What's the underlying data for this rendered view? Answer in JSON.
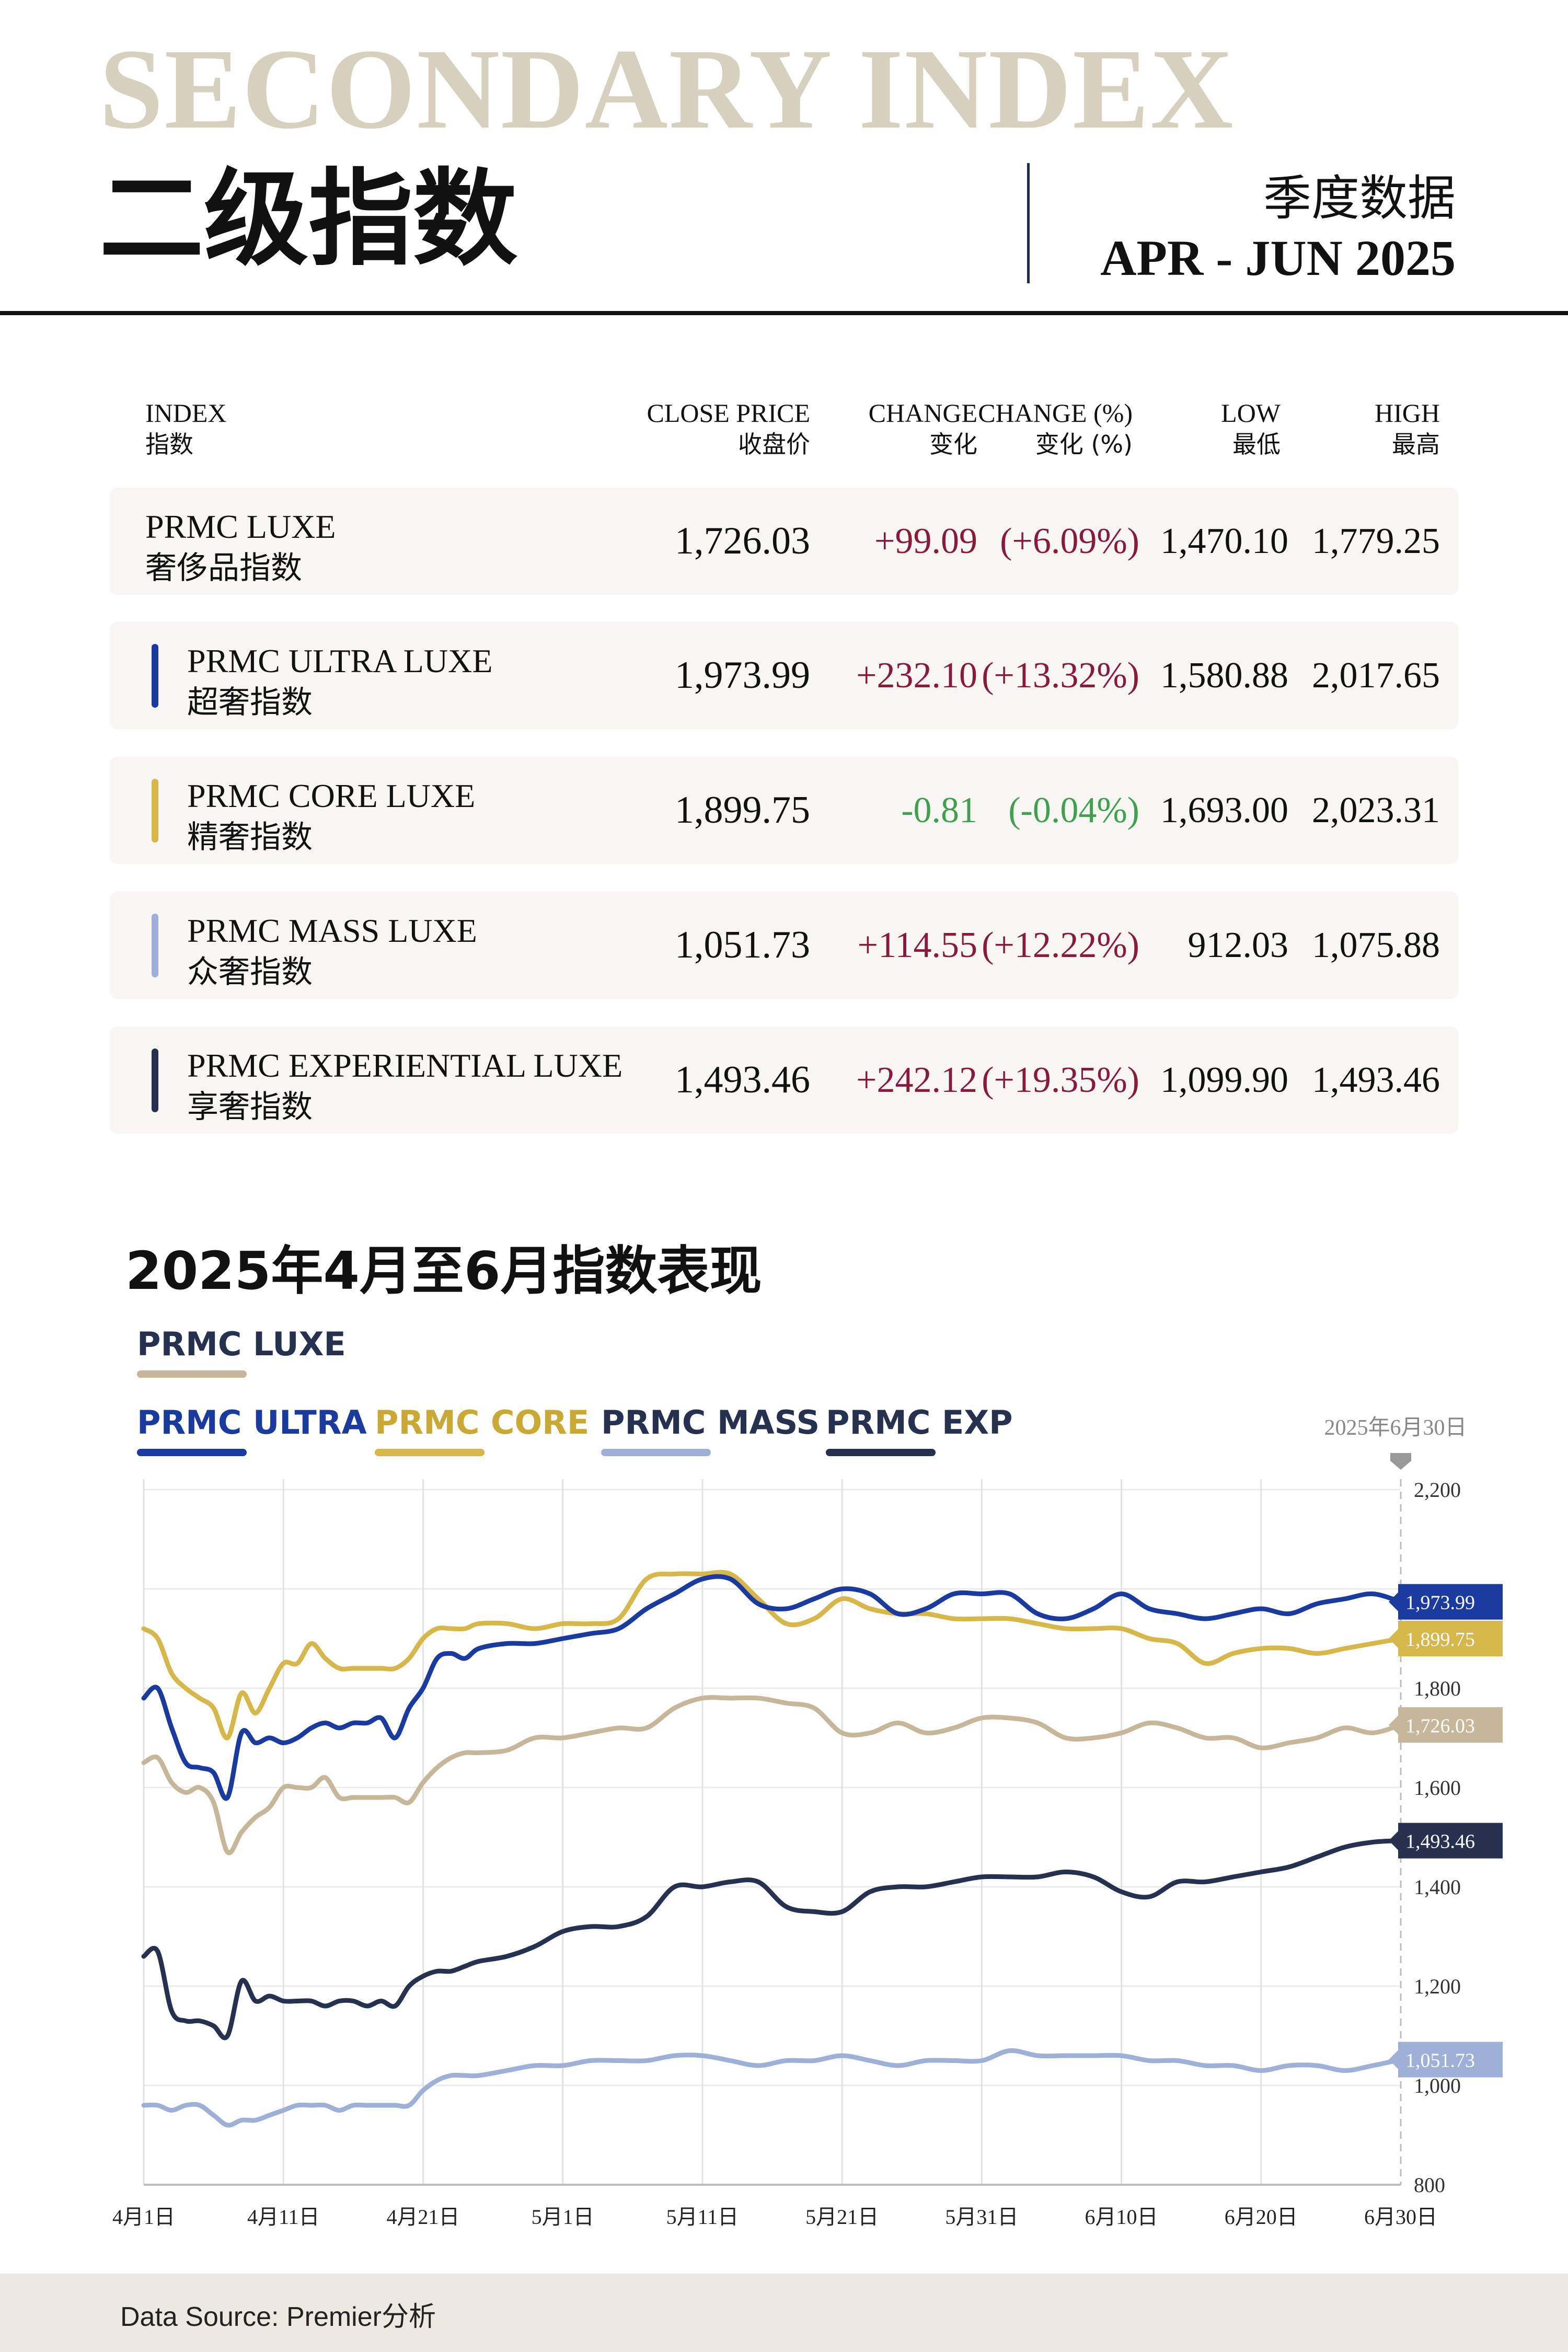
{
  "header": {
    "watermark": "SECONDARY INDEX",
    "title_cn": "二级指数",
    "period_cn": "季度数据",
    "period_en": "APR - JUN 2025"
  },
  "table": {
    "headers": {
      "index_en": "INDEX",
      "index_cn": "指数",
      "close_en": "CLOSE PRICE",
      "close_cn": "收盘价",
      "change_en": "CHANGE",
      "change_cn": "变化",
      "changepct_en": "CHANGE (%)",
      "changepct_cn": "变化 (%)",
      "low_en": "LOW",
      "low_cn": "最低",
      "high_en": "HIGH",
      "high_cn": "最高"
    },
    "rows": [
      {
        "name_en": "PRMC LUXE",
        "name_cn": "奢侈品指数",
        "close": "1,726.03",
        "change": "+99.09",
        "change_pct": "(+6.09%)",
        "low": "1,470.10",
        "high": "1,779.25",
        "color": "#c6b79b",
        "direction": "up"
      },
      {
        "name_en": "PRMC ULTRA LUXE",
        "name_cn": "超奢指数",
        "close": "1,973.99",
        "change": "+232.10",
        "change_pct": "(+13.32%)",
        "low": "1,580.88",
        "high": "2,017.65",
        "color": "#1a3aa0",
        "direction": "up"
      },
      {
        "name_en": "PRMC CORE LUXE",
        "name_cn": "精奢指数",
        "close": "1,899.75",
        "change": "-0.81",
        "change_pct": "(-0.04%)",
        "low": "1,693.00",
        "high": "2,023.31",
        "color": "#d6b74a",
        "direction": "down"
      },
      {
        "name_en": "PRMC MASS LUXE",
        "name_cn": "众奢指数",
        "close": "1,051.73",
        "change": "+114.55",
        "change_pct": "(+12.22%)",
        "low": "912.03",
        "high": "1,075.88",
        "color": "#9fb0d6",
        "direction": "up"
      },
      {
        "name_en": "PRMC EXPERIENTIAL LUXE",
        "name_cn": "享奢指数",
        "close": "1,493.46",
        "change": "+242.12",
        "change_pct": "(+19.35%)",
        "low": "1,099.90",
        "high": "1,493.46",
        "color": "#25314f",
        "direction": "up"
      }
    ],
    "colors": {
      "up": "#8a1a3c",
      "down": "#3fa04f"
    }
  },
  "chart_section": {
    "title": "2025年4月至6月指数表现",
    "legend": [
      {
        "label": "PRMC LUXE",
        "color": "#c6b79b"
      },
      {
        "label": "PRMC ULTRA",
        "color": "#1a3aa0"
      },
      {
        "label": "PRMC CORE",
        "color": "#d6b74a"
      },
      {
        "label": "PRMC MASS",
        "color": "#9fb0d6"
      },
      {
        "label": "PRMC EXP",
        "color": "#25314f"
      }
    ],
    "marker_label": "2025年6月30日"
  },
  "chart_data": {
    "type": "line",
    "title": "2025年4月至6月指数表现",
    "xlabel": "",
    "ylabel": "",
    "x_ticks": [
      "4月1日",
      "4月11日",
      "4月21日",
      "5月1日",
      "5月11日",
      "5月21日",
      "5月31日",
      "6月10日",
      "6月20日",
      "6月30日"
    ],
    "x_range": [
      0,
      90
    ],
    "y_ticks": [
      800,
      1000,
      1200,
      1400,
      1600,
      1800,
      2000,
      2200
    ],
    "y_tick_labels": [
      "800",
      "1,000",
      "1,200",
      "1,400",
      "1,600",
      "1,800",
      "",
      "2,200"
    ],
    "ylim": [
      800,
      2200
    ],
    "grid": true,
    "legend_position": "top-left",
    "end_labels": [
      "1,973.99",
      "1,899.75",
      "1,726.03",
      "1,493.46",
      "1,051.73"
    ],
    "series": [
      {
        "name": "PRMC LUXE",
        "color": "#c6b79b",
        "x": [
          0,
          1,
          2,
          3,
          4,
          5,
          6,
          7,
          8,
          9,
          10,
          11,
          12,
          13,
          14,
          15,
          16,
          17,
          18,
          19,
          20,
          21,
          22,
          23,
          24,
          26,
          28,
          30,
          32,
          34,
          36,
          38,
          40,
          42,
          44,
          46,
          48,
          50,
          52,
          54,
          56,
          58,
          60,
          62,
          64,
          66,
          68,
          70,
          72,
          74,
          76,
          78,
          80,
          82,
          84,
          86,
          88,
          90
        ],
        "y": [
          1650,
          1660,
          1610,
          1590,
          1600,
          1570,
          1470,
          1510,
          1540,
          1560,
          1600,
          1600,
          1600,
          1620,
          1580,
          1580,
          1580,
          1580,
          1580,
          1570,
          1610,
          1640,
          1660,
          1670,
          1670,
          1675,
          1700,
          1700,
          1710,
          1720,
          1720,
          1760,
          1780,
          1780,
          1780,
          1770,
          1760,
          1710,
          1710,
          1730,
          1710,
          1720,
          1740,
          1740,
          1730,
          1700,
          1700,
          1710,
          1730,
          1720,
          1700,
          1700,
          1680,
          1690,
          1700,
          1720,
          1710,
          1726
        ]
      },
      {
        "name": "PRMC ULTRA",
        "color": "#1a3aa0",
        "x": [
          0,
          1,
          2,
          3,
          4,
          5,
          6,
          7,
          8,
          9,
          10,
          11,
          12,
          13,
          14,
          15,
          16,
          17,
          18,
          19,
          20,
          21,
          22,
          23,
          24,
          26,
          28,
          30,
          32,
          34,
          36,
          38,
          40,
          42,
          44,
          46,
          48,
          50,
          52,
          54,
          56,
          58,
          60,
          62,
          64,
          66,
          68,
          70,
          72,
          74,
          76,
          78,
          80,
          82,
          84,
          86,
          88,
          90
        ],
        "y": [
          1780,
          1800,
          1720,
          1650,
          1640,
          1630,
          1580,
          1710,
          1690,
          1700,
          1690,
          1700,
          1720,
          1730,
          1720,
          1730,
          1730,
          1740,
          1700,
          1760,
          1800,
          1860,
          1870,
          1860,
          1880,
          1890,
          1890,
          1900,
          1910,
          1920,
          1960,
          1990,
          2020,
          2020,
          1970,
          1960,
          1980,
          2000,
          1990,
          1950,
          1960,
          1990,
          1990,
          1990,
          1950,
          1940,
          1960,
          1990,
          1960,
          1950,
          1940,
          1950,
          1960,
          1950,
          1970,
          1980,
          1990,
          1974
        ]
      },
      {
        "name": "PRMC CORE",
        "color": "#d6b74a",
        "x": [
          0,
          1,
          2,
          3,
          4,
          5,
          6,
          7,
          8,
          9,
          10,
          11,
          12,
          13,
          14,
          15,
          16,
          17,
          18,
          19,
          20,
          21,
          22,
          23,
          24,
          26,
          28,
          30,
          32,
          34,
          36,
          38,
          40,
          42,
          44,
          46,
          48,
          50,
          52,
          54,
          56,
          58,
          60,
          62,
          64,
          66,
          68,
          70,
          72,
          74,
          76,
          78,
          80,
          82,
          84,
          86,
          88,
          90
        ],
        "y": [
          1920,
          1900,
          1830,
          1800,
          1780,
          1760,
          1700,
          1790,
          1750,
          1800,
          1850,
          1850,
          1890,
          1860,
          1840,
          1840,
          1840,
          1840,
          1840,
          1860,
          1900,
          1920,
          1920,
          1920,
          1930,
          1930,
          1920,
          1930,
          1930,
          1940,
          2020,
          2030,
          2030,
          2030,
          1980,
          1930,
          1940,
          1980,
          1960,
          1950,
          1950,
          1940,
          1940,
          1940,
          1930,
          1920,
          1920,
          1920,
          1900,
          1890,
          1850,
          1870,
          1880,
          1880,
          1870,
          1880,
          1890,
          1900
        ]
      },
      {
        "name": "PRMC MASS",
        "color": "#9fb0d6",
        "x": [
          0,
          1,
          2,
          3,
          4,
          5,
          6,
          7,
          8,
          9,
          10,
          11,
          12,
          13,
          14,
          15,
          16,
          17,
          18,
          19,
          20,
          21,
          22,
          23,
          24,
          26,
          28,
          30,
          32,
          34,
          36,
          38,
          40,
          42,
          44,
          46,
          48,
          50,
          52,
          54,
          56,
          58,
          60,
          62,
          64,
          66,
          68,
          70,
          72,
          74,
          76,
          78,
          80,
          82,
          84,
          86,
          88,
          90
        ],
        "y": [
          960,
          960,
          950,
          960,
          960,
          940,
          920,
          930,
          930,
          940,
          950,
          960,
          960,
          960,
          950,
          960,
          960,
          960,
          960,
          960,
          990,
          1010,
          1020,
          1020,
          1020,
          1030,
          1040,
          1040,
          1050,
          1050,
          1050,
          1060,
          1060,
          1050,
          1040,
          1050,
          1050,
          1060,
          1050,
          1040,
          1050,
          1050,
          1050,
          1070,
          1060,
          1060,
          1060,
          1060,
          1050,
          1050,
          1040,
          1040,
          1030,
          1040,
          1040,
          1030,
          1040,
          1052
        ]
      },
      {
        "name": "PRMC EXP",
        "color": "#25314f",
        "x": [
          0,
          1,
          2,
          3,
          4,
          5,
          6,
          7,
          8,
          9,
          10,
          11,
          12,
          13,
          14,
          15,
          16,
          17,
          18,
          19,
          20,
          21,
          22,
          23,
          24,
          26,
          28,
          30,
          32,
          34,
          36,
          38,
          40,
          42,
          44,
          46,
          48,
          50,
          52,
          54,
          56,
          58,
          60,
          62,
          64,
          66,
          68,
          70,
          72,
          74,
          76,
          78,
          80,
          82,
          84,
          86,
          88,
          90
        ],
        "y": [
          1260,
          1270,
          1150,
          1130,
          1130,
          1120,
          1100,
          1210,
          1170,
          1180,
          1170,
          1170,
          1170,
          1160,
          1170,
          1170,
          1160,
          1170,
          1160,
          1200,
          1220,
          1230,
          1230,
          1240,
          1250,
          1260,
          1280,
          1310,
          1320,
          1320,
          1340,
          1400,
          1400,
          1410,
          1410,
          1360,
          1350,
          1350,
          1390,
          1400,
          1400,
          1410,
          1420,
          1420,
          1420,
          1430,
          1420,
          1390,
          1380,
          1410,
          1410,
          1420,
          1430,
          1440,
          1460,
          1480,
          1490,
          1493
        ]
      }
    ]
  },
  "footer": {
    "source": "Data Source: Premier分析"
  }
}
